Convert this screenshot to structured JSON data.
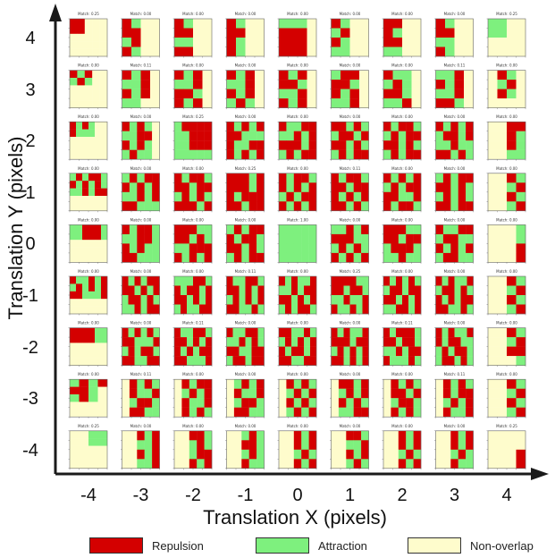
{
  "axes": {
    "xlabel": "Translation X (pixels)",
    "ylabel": "Translation Y (pixels)",
    "x_ticks": [
      "-4",
      "-3",
      "-2",
      "-1",
      "0",
      "1",
      "2",
      "3",
      "4"
    ],
    "y_ticks": [
      "4",
      "3",
      "2",
      "1",
      "0",
      "-1",
      "-2",
      "-3",
      "-4"
    ]
  },
  "legend": [
    {
      "label": "Repulsion",
      "color": "#d40000"
    },
    {
      "label": "Attraction",
      "color": "#7ef07e"
    },
    {
      "label": "Non-overlap",
      "color": "#fefccc"
    }
  ],
  "colors": {
    "R": "#d40000",
    "A": "#7ef07e",
    "N": "#fefccc",
    "axis": "#1a1a1a"
  },
  "panel_titles": [
    [
      "Match: 0.25",
      "Match: 0.00",
      "Match: 0.00",
      "Match: 0.00",
      "Match: 0.00",
      "Match: 0.00",
      "Match: 0.00",
      "Match: 0.00",
      "Match: 0.25"
    ],
    [
      "Match: 0.00",
      "Match: 0.11",
      "Match: 0.00",
      "Match: 0.00",
      "Match: 0.00",
      "Match: 0.00",
      "Match: 0.00",
      "Match: 0.11",
      "Match: 0.00"
    ],
    [
      "Match: 0.00",
      "Match: 0.00",
      "Match: 0.25",
      "Match: 0.00",
      "Match: 0.00",
      "Match: 0.00",
      "Match: 0.00",
      "Match: 0.00",
      "Match: 0.00"
    ],
    [
      "Match: 0.00",
      "Match: 0.00",
      "Match: 0.00",
      "Match: 0.25",
      "Match: 0.00",
      "Match: 0.11",
      "Match: 0.00",
      "Match: 0.00",
      "Match: 0.00"
    ],
    [
      "Match: 0.00",
      "Match: 0.00",
      "Match: 0.00",
      "Match: 0.00",
      "Match: 1.00",
      "Match: 0.00",
      "Match: 0.00",
      "Match: 0.00",
      "Match: 0.00"
    ],
    [
      "Match: 0.00",
      "Match: 0.00",
      "Match: 0.00",
      "Match: 0.11",
      "Match: 0.00",
      "Match: 0.25",
      "Match: 0.00",
      "Match: 0.00",
      "Match: 0.00"
    ],
    [
      "Match: 0.00",
      "Match: 0.00",
      "Match: 0.11",
      "Match: 0.00",
      "Match: 0.00",
      "Match: 0.00",
      "Match: 0.11",
      "Match: 0.00",
      "Match: 0.00"
    ],
    [
      "Match: 0.00",
      "Match: 0.11",
      "Match: 0.00",
      "Match: 0.00",
      "Match: 0.00",
      "Match: 0.00",
      "Match: 0.00",
      "Match: 0.11",
      "Match: 0.00"
    ],
    [
      "Match: 0.25",
      "Match: 0.00",
      "Match: 0.00",
      "Match: 0.00",
      "Match: 0.00",
      "Match: 0.00",
      "Match: 0.00",
      "Match: 0.00",
      "Match: 0.25"
    ]
  ],
  "grids": [
    [
      [
        "RRNNN",
        "RRNNN",
        "NNNNN",
        "NNNNN",
        "NNNNN"
      ],
      [
        "RARNN",
        "ARANN",
        "NNNNN",
        "NNNNN",
        "NNNNN"
      ],
      [
        "RARANN",
        "RAAANN",
        "NNNNNN",
        "NNNNNN",
        "NNNNNN"
      ],
      [
        "ARARRA",
        "RARARA",
        "AARARR",
        "NNNNNN",
        "NNNNNN"
      ],
      [
        "AARRRA",
        "AARRRA",
        "NNNNNN",
        "NNNNNN",
        "NNNNNN"
      ],
      [
        "RAARAR",
        "ARARAR",
        "RRAAAR",
        "NNNNNN",
        "NNNNNN"
      ],
      [
        "RRRRAA",
        "RRRRAA",
        "NNNNNN",
        "NNNNNN",
        "NNNNNN"
      ],
      [
        "ARAR",
        "RRAN",
        "ARAN",
        "NNNN",
        "NNNN"
      ],
      [
        "NNAA",
        "NNAA",
        "NNNN",
        "NNNN",
        "NNNN"
      ]
    ],
    [
      [
        "RANN",
        "RRNN",
        "ARNN",
        "RANN"
      ],
      [
        "RARN",
        "AARN",
        "RARN",
        "AANN"
      ],
      [
        "RARAN",
        "AARRN",
        "RARAN",
        "ARAAN"
      ],
      [
        "ARARR",
        "RARAR",
        "AARAR",
        "RRAAA"
      ],
      [
        "RARRA",
        "AARRA",
        "RARAA",
        "RRAAA"
      ],
      [
        "RARARR",
        "RRARAR",
        "ARRARA",
        "AARARR"
      ],
      [
        "RARARA",
        "RRAAAR",
        "ARARRA",
        "RRAARR"
      ],
      [
        "NRARA",
        "NRAAR",
        "NARRA",
        "NRRAA"
      ],
      [
        "NNRAR",
        "NNAAR",
        "NNRAR",
        "NNAAR"
      ]
    ],
    [
      [
        "RANN",
        "RRNN",
        "AANN",
        "RRNN"
      ],
      [
        "RARN",
        "AARN",
        "RRAN",
        "RARN"
      ],
      [
        "ARRRR",
        "AARRR",
        "AARRR",
        "AAAAA"
      ],
      [
        "RARRA",
        "RRARR",
        "ARARA",
        "RRRAR"
      ],
      [
        "RRRAA",
        "RRARA",
        "AARRR",
        "RARAR"
      ],
      [
        "AAARRA",
        "RARRAR",
        "RRARAR",
        "ARAARR"
      ],
      [
        "RAARRA",
        "RRARAR",
        "RARARR",
        "RRAAAR"
      ],
      [
        "NRARR",
        "NARAR",
        "NRAAR",
        "NRARA"
      ],
      [
        "NNRRA",
        "NNARA",
        "NNARR",
        "NNRAR"
      ]
    ],
    [
      [
        "RANN",
        "RRNN",
        "RANN",
        "RANN"
      ],
      [
        "RARN",
        "AARN",
        "RARN",
        "ARAN"
      ],
      [
        "RARAR",
        "RRAAA",
        "RAARR",
        "RARAR"
      ],
      [
        "RRRAR",
        "RRRAR",
        "RARRR",
        "RRARR"
      ],
      [
        "ARARR",
        "RARRA",
        "RRARA",
        "ARARR"
      ],
      [
        "RAARRA",
        "RRARAR",
        "ARARAR",
        "RRAARA"
      ],
      [
        "RAARRA",
        "AARARA",
        "RRAARR",
        "ARRARR"
      ],
      [
        "NARAR",
        "NRAAR",
        "NARRA",
        "NRRAA"
      ],
      [
        "NNARA",
        "NNRRA",
        "NNARA",
        "NNRAA"
      ]
    ],
    [
      [
        "AAAN",
        "RRRN",
        "RRRN",
        "RRRN"
      ],
      [
        "RARN",
        "RRAN",
        "AARN",
        "RARN"
      ],
      [
        "RAARR",
        "AARAR",
        "RRRAR",
        "ARARR"
      ],
      [
        "RARRA",
        "RARAR",
        "ARARR",
        "RARAR"
      ],
      [
        "AAAAA",
        "AAAAA",
        "AAAAA",
        "AAAAA"
      ],
      [
        "RARAAR",
        "AARARR",
        "RRARAR",
        "ARARRA"
      ],
      [
        "RRAARA",
        "ARARAR",
        "RARRAR",
        "RRAARR"
      ],
      [
        "NRARA",
        "NARAR",
        "NRARA",
        "NARAR"
      ],
      [
        "NNRAR",
        "NNRAR",
        "NNARA",
        "NNRAR"
      ]
    ],
    [
      [
        "RANN",
        "ARNN",
        "RANN",
        "AANN"
      ],
      [
        "ARRN",
        "RRAN",
        "RARN",
        "AARN"
      ],
      [
        "RRARA",
        "ARRAR",
        "RRARA",
        "ARARR"
      ],
      [
        "RARRA",
        "RRARR",
        "RARAR",
        "RRARA"
      ],
      [
        "AARAR",
        "RRRAA",
        "ARARA",
        "RARAR"
      ],
      [
        "RRRRAA",
        "RRARRA",
        "AARAAR",
        "RAARAR"
      ],
      [
        "RARAAR",
        "RRRARR",
        "ARARAR",
        "RRARAR"
      ],
      [
        "NRRAR",
        "NARAR",
        "NRARA",
        "NAARR"
      ],
      [
        "NNRRA",
        "NNAAR",
        "NNRAR",
        "NNARA"
      ]
    ],
    [
      [
        "RRNN",
        "RANN",
        "RRNN",
        "AANN"
      ],
      [
        "RAAN",
        "ARAN",
        "RRAN",
        "AARN"
      ],
      [
        "RARRA",
        "ARARR",
        "RRARA",
        "ARARR"
      ],
      [
        "RARAR",
        "ARARR",
        "RRAAR",
        "RARRA"
      ],
      [
        "RRRAA",
        "RRARR",
        "ARRRA",
        "AARAA"
      ],
      [
        "RARARA",
        "ARRARR",
        "RRARAR",
        "AARRAR"
      ],
      [
        "RARRRA",
        "RRARRA",
        "AARARR",
        "RAAARA"
      ],
      [
        "NRARA",
        "NRRAR",
        "NARRA",
        "NRARA"
      ],
      [
        "NNRAR",
        "NNRAR",
        "NNARA",
        "NNRAR"
      ]
    ],
    [
      [
        "RANN",
        "RRNN",
        "AANN",
        "RANN"
      ],
      [
        "AARN",
        "RARN",
        "AARN",
        "RRAN"
      ],
      [
        "RARAR",
        "ARRAR",
        "AARAA",
        "RRARA"
      ],
      [
        "ARARR",
        "RRARA",
        "ARARA",
        "RRARR"
      ],
      [
        "RAARR",
        "ARRAA",
        "RARAR",
        "ARRAA"
      ],
      [
        "RARAAR",
        "ARRARA",
        "RARARR",
        "RRAARA"
      ],
      [
        "RARAAR",
        "RARRAA",
        "ARARRA",
        "ARRARA"
      ],
      [
        "NRARA",
        "NRARR",
        "NARAR",
        "NRAAR"
      ],
      [
        "NNRAR",
        "NNRAR",
        "NNARA",
        "NNRAA"
      ]
    ],
    [
      [
        "AANN",
        "AANN",
        "NNNN",
        "NNNN"
      ],
      [
        "NRAN",
        "NARN",
        "NRAN",
        "NNNN"
      ],
      [
        "NNRR",
        "NNRA",
        "NNRA",
        "NNAA"
      ],
      [
        "NNRA",
        "NNAR",
        "NNRA",
        "NNAR"
      ],
      [
        "NNNA",
        "NNNA",
        "NNNR",
        "NNNR"
      ],
      [
        "NNRA",
        "NNAR",
        "NNRA",
        "NNAR"
      ],
      [
        "NNRA",
        "NNAR",
        "NNRR",
        "NNNA"
      ],
      [
        "NNRA",
        "NNAR",
        "NNRA",
        "NNAR"
      ],
      [
        "NNNN",
        "NNNN",
        "NNNR",
        "NNNR"
      ]
    ]
  ]
}
